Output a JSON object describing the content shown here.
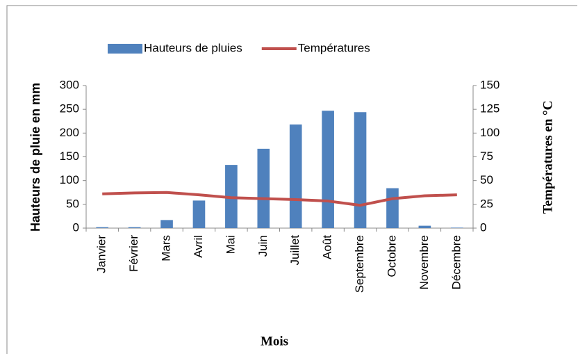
{
  "chart_data": {
    "type": "bar",
    "xlabel": "Mois",
    "ylabel": "Hauteurs de pluie en mm",
    "y2label": "Températures en °C",
    "categories": [
      "Janvier",
      "Février",
      "Mars",
      "Avril",
      "Mai",
      "Juin",
      "Juillet",
      "Août",
      "Septembre",
      "Octobre",
      "Novembre",
      "Décembre"
    ],
    "series": [
      {
        "name": "Hauteurs de pluies",
        "type": "bar",
        "color": "#4f81bd",
        "values": [
          2,
          2,
          17,
          58,
          133,
          167,
          218,
          247,
          244,
          84,
          5,
          1
        ]
      },
      {
        "name": "Températures",
        "type": "line",
        "axis": "y2",
        "color": "#c0504d",
        "values": [
          36,
          37,
          37.5,
          35,
          32,
          31,
          30,
          28.5,
          24,
          31,
          34,
          35
        ]
      }
    ],
    "ylim": [
      0,
      300
    ],
    "yticks": [
      0,
      50,
      100,
      150,
      200,
      250,
      300
    ],
    "y2lim": [
      0,
      150
    ],
    "y2ticks": [
      0,
      25,
      50,
      75,
      100,
      125,
      150
    ],
    "legend": "top"
  }
}
